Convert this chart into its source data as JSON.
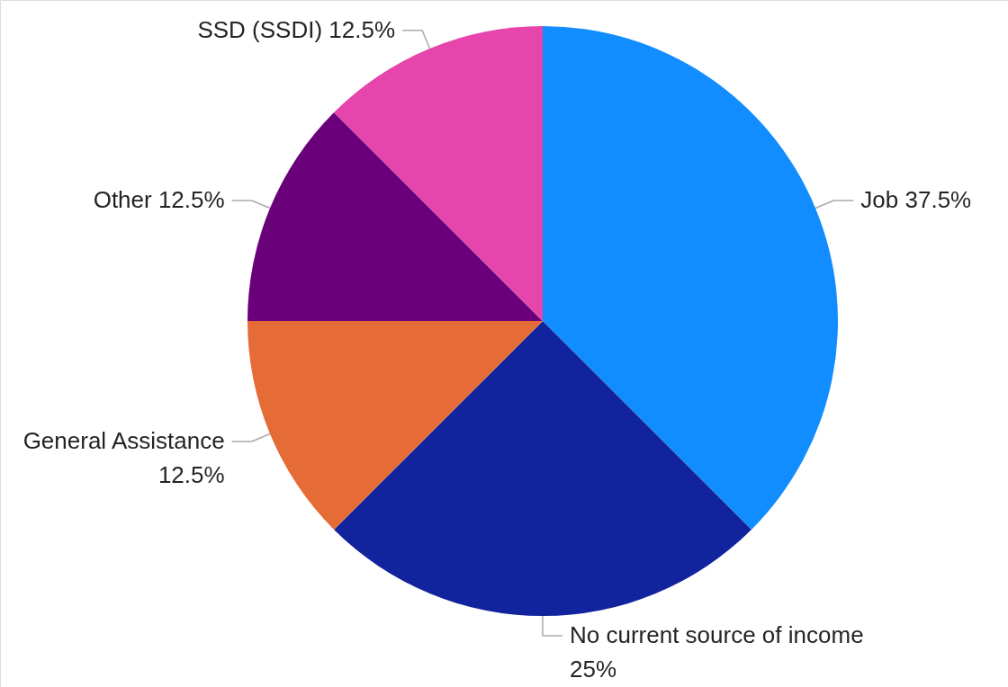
{
  "chart_data": {
    "type": "pie",
    "categories": [
      "Job",
      "No current source of income",
      "General Assistance",
      "Other",
      "SSD (SSDI)"
    ],
    "values": [
      37.5,
      25,
      12.5,
      12.5,
      12.5
    ],
    "value_labels": [
      "37.5%",
      "25%",
      "12.5%",
      "12.5%",
      "12.5%"
    ],
    "colors": [
      "#118dff",
      "#12239e",
      "#e66c37",
      "#6b007b",
      "#e645ab"
    ]
  }
}
